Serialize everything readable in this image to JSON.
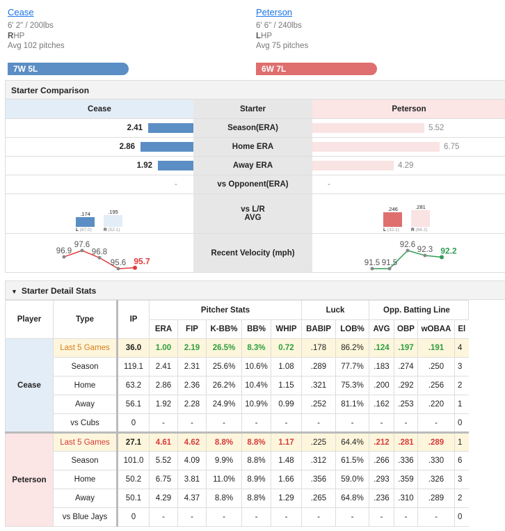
{
  "top_link": "",
  "left": {
    "name": "Cease",
    "height_weight": "6' 2\" / 200lbs",
    "hand_letter": "R",
    "hand_suffix": "HP",
    "avg_pitches": "Avg 102 pitches",
    "record": "7W 5L",
    "color": "#5b8ec4"
  },
  "right": {
    "name": "Peterson",
    "height_weight": "6' 6\" / 240lbs",
    "hand_letter": "L",
    "hand_suffix": "HP",
    "avg_pitches": "Avg 75 pitches",
    "record": "6W 7L",
    "color": "#df6f6f"
  },
  "comparison": {
    "title": "Starter Comparison",
    "header_left": "Cease",
    "header_mid": "Starter",
    "header_right": "Peterson",
    "rows": [
      {
        "label": "Season(ERA)",
        "left": "2.41",
        "right": "5.52",
        "left_frac": 0.24,
        "right_frac": 0.58
      },
      {
        "label": "Home ERA",
        "left": "2.86",
        "right": "6.75",
        "left_frac": 0.28,
        "right_frac": 0.66
      },
      {
        "label": "Away ERA",
        "left": "1.92",
        "right": "4.29",
        "left_frac": 0.19,
        "right_frac": 0.42
      },
      {
        "label": "vs Opponent(ERA)",
        "left": "-",
        "right": "-",
        "left_frac": 0,
        "right_frac": 0
      }
    ],
    "splits_label_1": "vs L/R",
    "splits_label_2": "AVG",
    "left_splits": {
      "l_val": ".174",
      "r_val": ".195",
      "l_lab": "L",
      "l_ip": "(67.0)",
      "r_lab": "R",
      "r_ip": "(52.1)"
    },
    "right_splits": {
      "l_val": ".246",
      "r_val": ".281",
      "l_lab": "L",
      "l_ip": "(32.1)",
      "r_lab": "R",
      "r_ip": "(68.2)"
    },
    "velocity_label": "Recent Velocity (mph)",
    "left_velocity": [
      "96.9",
      "97.6",
      "96.8",
      "95.6",
      "95.7"
    ],
    "right_velocity": [
      "91.5",
      "91.5",
      "92.6",
      "92.3",
      "92.2"
    ]
  },
  "detail": {
    "title": "Starter Detail Stats",
    "toggle_icon": "▼",
    "col_player": "Player",
    "col_type": "Type",
    "col_ip": "IP",
    "group_pitcher": "Pitcher Stats",
    "group_luck": "Luck",
    "group_opp": "Opp. Batting Line",
    "sub_cols": [
      "ERA",
      "FIP",
      "K-BB%",
      "BB%",
      "WHIP",
      "BABIP",
      "LOB%",
      "AVG",
      "OBP",
      "wOBAA",
      "El"
    ],
    "players": [
      {
        "name": "Cease",
        "rows": [
          {
            "type": "Last 5 Games",
            "vals": [
              "36.0",
              "1.00",
              "2.19",
              "26.5%",
              "8.3%",
              "0.72",
              ".178",
              "86.2%",
              ".124",
              ".197",
              ".191",
              "4"
            ]
          },
          {
            "type": "Season",
            "vals": [
              "119.1",
              "2.41",
              "2.31",
              "25.6%",
              "10.6%",
              "1.08",
              ".289",
              "77.7%",
              ".183",
              ".274",
              ".250",
              "3"
            ]
          },
          {
            "type": "Home",
            "vals": [
              "63.2",
              "2.86",
              "2.36",
              "26.2%",
              "10.4%",
              "1.15",
              ".321",
              "75.3%",
              ".200",
              ".292",
              ".256",
              "2"
            ]
          },
          {
            "type": "Away",
            "vals": [
              "56.1",
              "1.92",
              "2.28",
              "24.9%",
              "10.9%",
              "0.99",
              ".252",
              "81.1%",
              ".162",
              ".253",
              ".220",
              "1"
            ]
          },
          {
            "type": "vs Cubs",
            "vals": [
              "0",
              "-",
              "-",
              "-",
              "-",
              "-",
              "-",
              "-",
              "-",
              "-",
              "-",
              "0"
            ]
          }
        ]
      },
      {
        "name": "Peterson",
        "rows": [
          {
            "type": "Last 5 Games",
            "vals": [
              "27.1",
              "4.61",
              "4.62",
              "8.8%",
              "8.8%",
              "1.17",
              ".225",
              "64.4%",
              ".212",
              ".281",
              ".289",
              "1"
            ]
          },
          {
            "type": "Season",
            "vals": [
              "101.0",
              "5.52",
              "4.09",
              "9.9%",
              "8.8%",
              "1.48",
              ".312",
              "61.5%",
              ".266",
              ".336",
              ".330",
              "6"
            ]
          },
          {
            "type": "Home",
            "vals": [
              "50.2",
              "6.75",
              "3.81",
              "11.0%",
              "8.9%",
              "1.66",
              ".356",
              "59.0%",
              ".293",
              ".359",
              ".326",
              "3"
            ]
          },
          {
            "type": "Away",
            "vals": [
              "50.1",
              "4.29",
              "4.37",
              "8.8%",
              "8.8%",
              "1.29",
              ".265",
              "64.8%",
              ".236",
              ".310",
              ".289",
              "2"
            ]
          },
          {
            "type": "vs Blue Jays",
            "vals": [
              "0",
              "-",
              "-",
              "-",
              "-",
              "-",
              "-",
              "-",
              "-",
              "-",
              "-",
              "0"
            ]
          }
        ]
      }
    ]
  }
}
